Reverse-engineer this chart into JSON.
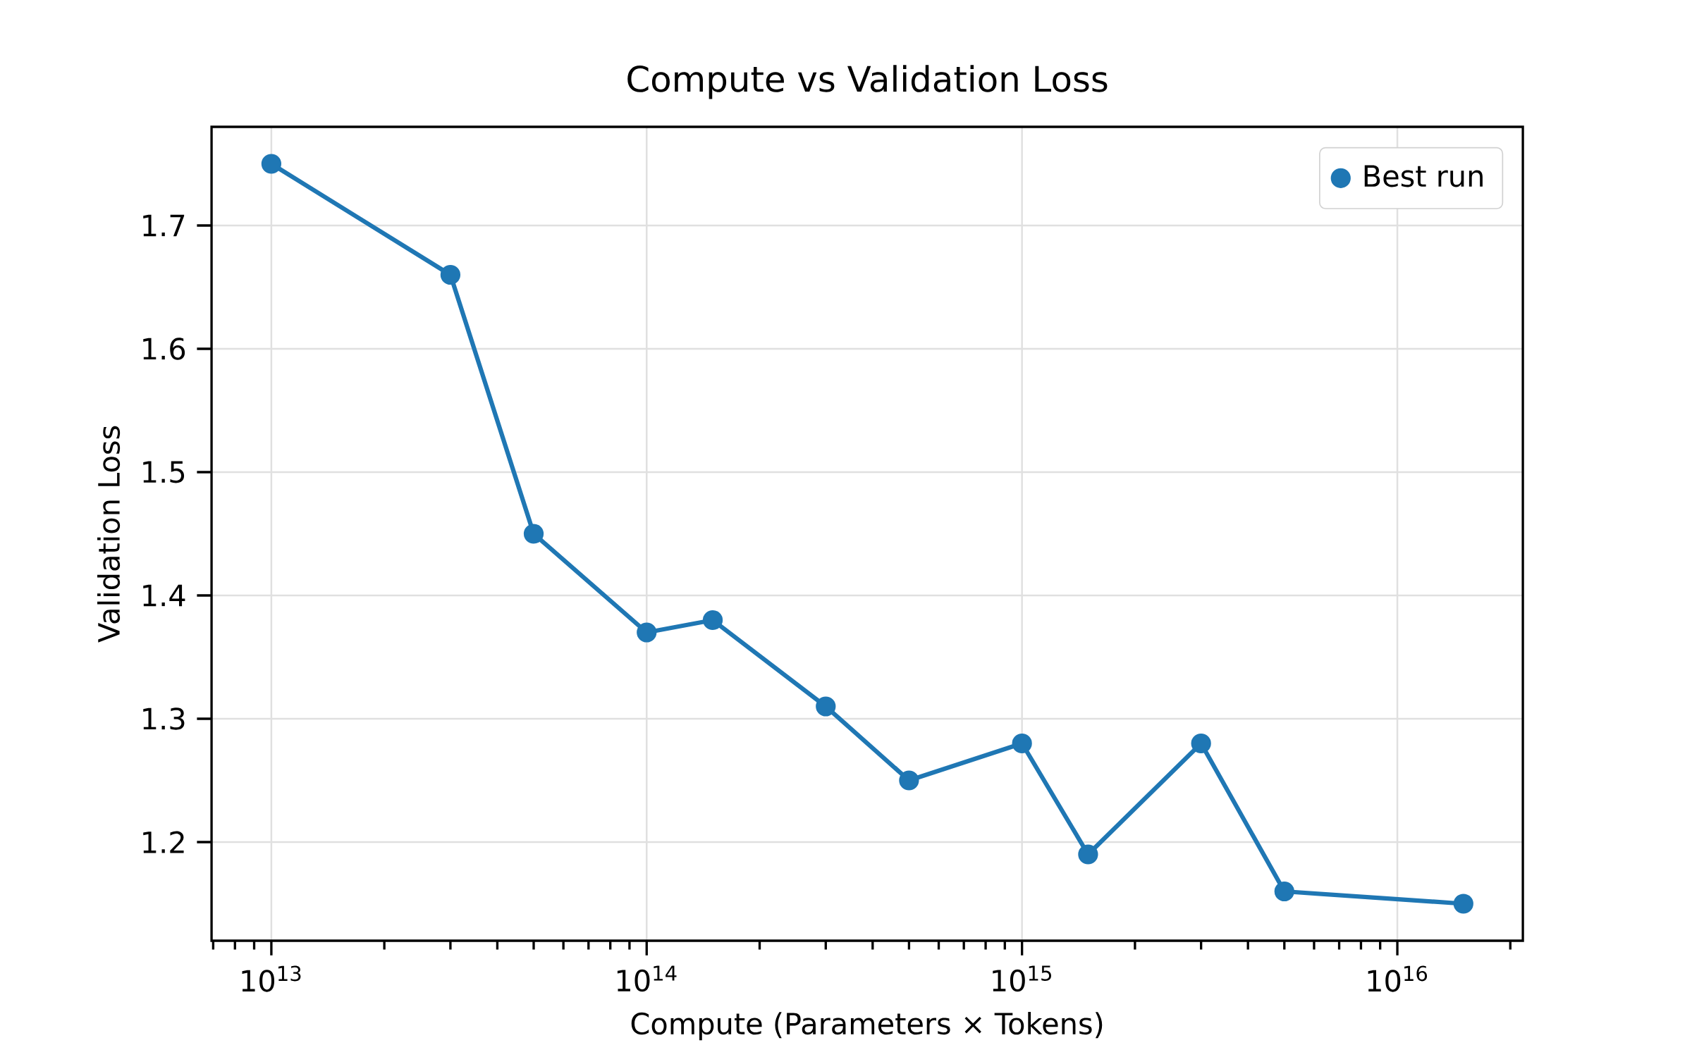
{
  "chart_data": {
    "type": "scatter",
    "title": "Compute vs Validation Loss",
    "xlabel": "Compute (Parameters × Tokens)",
    "ylabel": "Validation Loss",
    "x": [
      10000000000000.0,
      30000000000000.0,
      50000000000000.0,
      100000000000000.0,
      150000000000000.0,
      300000000000000.0,
      500000000000000.0,
      1000000000000000.0,
      1500000000000000.0,
      3000000000000000.0,
      5000000000000000.0,
      1.5e+16
    ],
    "series": [
      {
        "type": "line",
        "marker": "none",
        "color": "#1f77b4",
        "values": [
          1.75,
          1.66,
          1.45,
          1.37,
          1.38,
          1.31,
          1.25,
          1.28,
          1.19,
          1.28,
          1.16,
          1.15
        ]
      },
      {
        "name": "Best run",
        "marker": "circle",
        "color": "#1f77b4",
        "values": [
          1.75,
          1.66,
          1.45,
          1.37,
          1.38,
          1.31,
          1.25,
          1.28,
          1.19,
          1.28,
          1.16,
          1.15
        ]
      }
    ],
    "log": "x",
    "xlim": [
      6930000000000.0,
      2.16e+16
    ],
    "ylim": [
      1.12,
      1.78
    ],
    "xticks": [
      {
        "value": 10000000000000.0,
        "label": "10$^{13}$"
      },
      {
        "value": 100000000000000.0,
        "label": "10$^{14}$"
      },
      {
        "value": 1000000000000000.0,
        "label": "10$^{15}$"
      },
      {
        "value": 1e+16,
        "label": "10$^{16}$"
      }
    ],
    "yticks": [
      1.2,
      1.3,
      1.4,
      1.5,
      1.6,
      1.7
    ],
    "grid": true,
    "legend": "top right"
  }
}
